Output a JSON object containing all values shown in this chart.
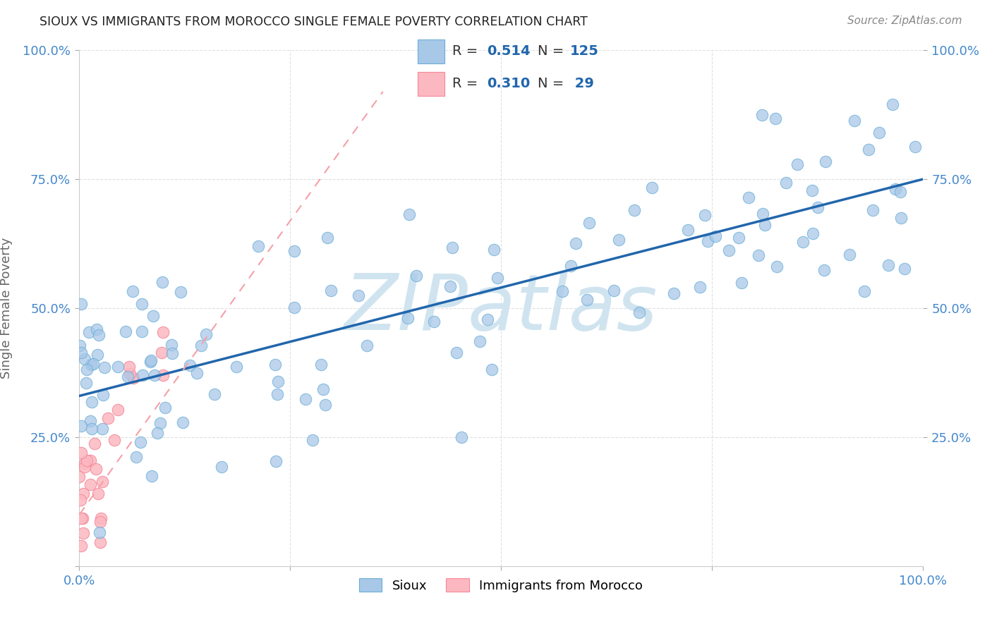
{
  "title": "SIOUX VS IMMIGRANTS FROM MOROCCO SINGLE FEMALE POVERTY CORRELATION CHART",
  "source": "Source: ZipAtlas.com",
  "ylabel": "Single Female Poverty",
  "xlim": [
    0,
    1
  ],
  "ylim": [
    0,
    1
  ],
  "sioux_color": "#a8c8e8",
  "sioux_edge_color": "#6baed6",
  "morocco_color": "#fcb8c0",
  "morocco_edge_color": "#f48898",
  "trendline_sioux_color": "#2166ac",
  "trendline_morocco_color": "#f4a0a8",
  "watermark": "ZIPatlas",
  "watermark_color": "#d0e4f0",
  "background_color": "#ffffff",
  "grid_color": "#e0e0e0",
  "tick_color": "#4488cc",
  "title_color": "#222222",
  "source_color": "#888888",
  "ylabel_color": "#666666"
}
